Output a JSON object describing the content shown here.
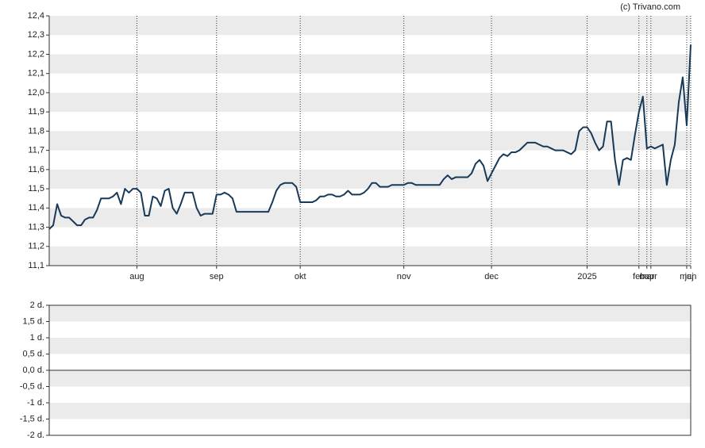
{
  "source": "(c) Trivano.com",
  "chart_data": [
    {
      "type": "line",
      "categories": [
        null,
        null,
        null,
        null,
        null,
        null,
        null,
        null,
        null,
        null,
        null,
        null,
        null,
        null,
        null,
        null,
        null,
        null,
        null,
        null,
        null,
        null,
        "aug",
        null,
        null,
        null,
        null,
        null,
        null,
        null,
        null,
        null,
        null,
        null,
        null,
        null,
        null,
        null,
        null,
        null,
        null,
        null,
        "sep",
        null,
        null,
        null,
        null,
        null,
        null,
        null,
        null,
        null,
        null,
        null,
        null,
        null,
        null,
        null,
        null,
        null,
        null,
        null,
        null,
        "okt",
        null,
        null,
        null,
        null,
        null,
        null,
        null,
        null,
        null,
        null,
        null,
        null,
        null,
        null,
        null,
        null,
        null,
        null,
        null,
        null,
        null,
        null,
        null,
        null,
        null,
        "nov",
        null,
        null,
        null,
        null,
        null,
        null,
        null,
        null,
        null,
        null,
        null,
        null,
        null,
        null,
        null,
        null,
        null,
        null,
        null,
        null,
        null,
        "dec",
        null,
        null,
        null,
        null,
        null,
        null,
        null,
        null,
        null,
        null,
        null,
        null,
        null,
        null,
        null,
        null,
        null,
        null,
        null,
        null,
        null,
        null,
        null,
        "2025",
        null,
        null,
        null,
        null,
        null,
        null,
        null,
        null,
        null,
        null,
        null,
        null,
        "feb",
        null,
        "mar",
        "apr",
        null,
        null,
        null,
        null,
        null,
        null,
        null,
        null,
        "maj",
        "jun"
      ],
      "series": [
        {
          "color": "#17395a",
          "values": [
            11.29,
            11.31,
            11.42,
            11.36,
            11.35,
            11.35,
            11.33,
            11.31,
            11.31,
            11.34,
            11.35,
            11.35,
            11.39,
            11.45,
            11.45,
            11.45,
            11.46,
            11.48,
            11.42,
            11.5,
            11.48,
            11.5,
            11.5,
            11.48,
            11.36,
            11.36,
            11.46,
            11.45,
            11.41,
            11.49,
            11.5,
            11.4,
            11.37,
            11.42,
            11.48,
            11.48,
            11.48,
            11.4,
            11.36,
            11.37,
            11.37,
            11.37,
            11.47,
            11.47,
            11.48,
            11.47,
            11.45,
            11.38,
            11.38,
            11.38,
            11.38,
            11.38,
            11.38,
            11.38,
            11.38,
            11.38,
            11.43,
            11.49,
            11.52,
            11.53,
            11.53,
            11.53,
            11.51,
            11.43,
            11.43,
            11.43,
            11.43,
            11.44,
            11.46,
            11.46,
            11.47,
            11.47,
            11.46,
            11.46,
            11.47,
            11.49,
            11.47,
            11.47,
            11.47,
            11.48,
            11.5,
            11.53,
            11.53,
            11.51,
            11.51,
            11.51,
            11.52,
            11.52,
            11.52,
            11.52,
            11.53,
            11.53,
            11.52,
            11.52,
            11.52,
            11.52,
            11.52,
            11.52,
            11.52,
            11.55,
            11.57,
            11.55,
            11.56,
            11.56,
            11.56,
            11.56,
            11.58,
            11.63,
            11.65,
            11.62,
            11.54,
            11.58,
            11.62,
            11.66,
            11.68,
            11.67,
            11.69,
            11.69,
            11.7,
            11.72,
            11.74,
            11.74,
            11.74,
            11.73,
            11.72,
            11.72,
            11.71,
            11.7,
            11.7,
            11.7,
            11.69,
            11.68,
            11.7,
            11.8,
            11.82,
            11.82,
            11.79,
            11.74,
            11.7,
            11.72,
            11.85,
            11.85,
            11.65,
            11.52,
            11.65,
            11.66,
            11.65,
            11.78,
            11.9,
            11.98,
            11.71,
            11.72,
            11.71,
            11.72,
            11.73,
            11.52,
            11.65,
            11.73,
            11.95,
            12.08,
            11.83,
            12.25
          ]
        }
      ],
      "ylim": [
        11.1,
        12.4
      ],
      "yticks": [
        {
          "value": 11.1,
          "label": "11,1"
        },
        {
          "value": 11.2,
          "label": "11,2"
        },
        {
          "value": 11.3,
          "label": "11,3"
        },
        {
          "value": 11.4,
          "label": "11,4"
        },
        {
          "value": 11.5,
          "label": "11,5"
        },
        {
          "value": 11.6,
          "label": "11,6"
        },
        {
          "value": 11.7,
          "label": "11,7"
        },
        {
          "value": 11.8,
          "label": "11,8"
        },
        {
          "value": 11.9,
          "label": "11,9"
        },
        {
          "value": 12.0,
          "label": "12,0"
        },
        {
          "value": 12.1,
          "label": "12,1"
        },
        {
          "value": 12.2,
          "label": "12,2"
        },
        {
          "value": 12.3,
          "label": "12,3"
        },
        {
          "value": 12.4,
          "label": "12,4"
        }
      ],
      "grid": true
    },
    {
      "type": "line",
      "series": [],
      "ylim": [
        -2,
        2
      ],
      "yticks": [
        {
          "value": -2,
          "label": "-2 d."
        },
        {
          "value": -1.5,
          "label": "-1,5 d."
        },
        {
          "value": -1,
          "label": "-1 d."
        },
        {
          "value": -0.5,
          "label": "-0,5 d."
        },
        {
          "value": 0,
          "label": "0,0 d."
        },
        {
          "value": 0.5,
          "label": "0,5 d."
        },
        {
          "value": 1,
          "label": "1 d."
        },
        {
          "value": 1.5,
          "label": "1,5 d."
        },
        {
          "value": 2,
          "label": "2 d."
        }
      ],
      "grid": true
    }
  ]
}
